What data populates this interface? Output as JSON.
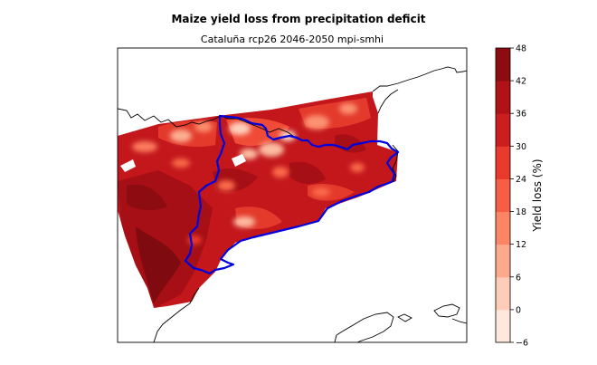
{
  "title": "Maize yield loss from precipitation deficit",
  "subtitle": "Cataluña rcp26 2046-2050 mpi-smhi",
  "colorbar": {
    "label": "Yield loss (%)",
    "ticks": [
      "48",
      "42",
      "36",
      "30",
      "24",
      "18",
      "12",
      "6",
      "0",
      "−6"
    ],
    "range": [
      -6,
      48
    ],
    "colors": [
      "#fee8dd",
      "#fdcdb9",
      "#fca98c",
      "#fc8566",
      "#f85e44",
      "#e93a2d",
      "#cc1d1f",
      "#b11218",
      "#8c0c12"
    ]
  },
  "map": {
    "region": "Cataluña",
    "boundary_color": "#0000dd",
    "coastline_color": "#000000"
  }
}
